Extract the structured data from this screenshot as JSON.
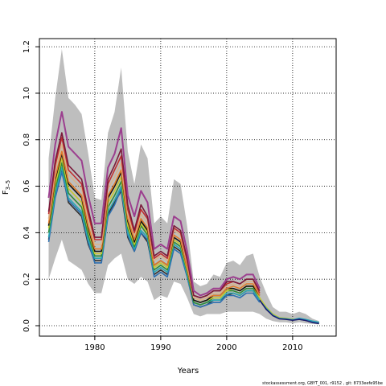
{
  "chart_data": {
    "type": "line",
    "title": "",
    "xlabel": "Years",
    "ylabel": "F",
    "ylabel_subscript": "3–5",
    "xlim": [
      1971.6,
      2016.6
    ],
    "ylim": [
      -0.045,
      1.235
    ],
    "x_ticks": [
      1980,
      1990,
      2000,
      2010
    ],
    "y_ticks": [
      0.0,
      0.2,
      0.4,
      0.6,
      0.8,
      1.0,
      1.2
    ],
    "y_tick_labels": [
      "0.0",
      "0.2",
      "0.4",
      "0.6",
      "0.8",
      "1.0",
      "1.2"
    ],
    "grid": true,
    "band_color": "#bebebe",
    "band": {
      "x": [
        1973,
        1974,
        1975,
        1976,
        1977,
        1978,
        1979,
        1980,
        1981,
        1982,
        1983,
        1984,
        1985,
        1986,
        1987,
        1988,
        1989,
        1990,
        1991,
        1992,
        1993,
        1994,
        1995,
        1996,
        1997,
        1998,
        1999,
        2000,
        2001,
        2002,
        2003,
        2004,
        2005,
        2006,
        2007,
        2008,
        2009,
        2010,
        2011,
        2012,
        2013,
        2014
      ],
      "upper": [
        0.72,
        0.98,
        1.19,
        0.98,
        0.95,
        0.91,
        0.74,
        0.55,
        0.54,
        0.83,
        0.92,
        1.11,
        0.75,
        0.61,
        0.78,
        0.72,
        0.44,
        0.47,
        0.44,
        0.63,
        0.61,
        0.43,
        0.19,
        0.17,
        0.18,
        0.22,
        0.21,
        0.27,
        0.28,
        0.26,
        0.3,
        0.31,
        0.21,
        0.14,
        0.08,
        0.06,
        0.06,
        0.05,
        0.06,
        0.05,
        0.03,
        0.02
      ],
      "lower": [
        0.2,
        0.29,
        0.37,
        0.28,
        0.26,
        0.24,
        0.18,
        0.14,
        0.14,
        0.26,
        0.29,
        0.31,
        0.2,
        0.18,
        0.21,
        0.19,
        0.11,
        0.13,
        0.12,
        0.19,
        0.18,
        0.12,
        0.05,
        0.04,
        0.05,
        0.05,
        0.05,
        0.06,
        0.06,
        0.06,
        0.06,
        0.06,
        0.05,
        0.03,
        0.02,
        0.015,
        0.015,
        0.01,
        0.015,
        0.01,
        0.008,
        0.005
      ]
    },
    "x": [
      1973,
      1974,
      1975,
      1976,
      1977,
      1978,
      1979,
      1980,
      1981,
      1982,
      1983,
      1984,
      1985,
      1986,
      1987,
      1988,
      1989,
      1990,
      1991,
      1992,
      1993,
      1994,
      1995,
      1996,
      1997,
      1998,
      1999,
      2000,
      2001,
      2002,
      2003,
      2004,
      2005
    ],
    "series": [
      {
        "color": "#303030",
        "values": [
          0.37,
          0.56,
          0.67,
          0.53,
          0.5,
          0.47,
          0.35,
          0.28,
          0.28,
          0.48,
          0.53,
          0.58,
          0.38,
          0.32,
          0.4,
          0.36,
          0.22,
          0.24,
          0.22,
          0.34,
          0.32,
          0.22,
          0.09,
          0.08,
          0.09,
          0.11,
          0.11,
          0.13,
          0.14,
          0.13,
          0.15,
          0.15,
          0.11
        ]
      },
      {
        "color": "#2c6fb0",
        "values": [
          0.36,
          0.55,
          0.66,
          0.54,
          0.51,
          0.48,
          0.36,
          0.27,
          0.27,
          0.47,
          0.52,
          0.59,
          0.39,
          0.32,
          0.4,
          0.37,
          0.21,
          0.23,
          0.21,
          0.33,
          0.31,
          0.21,
          0.09,
          0.08,
          0.09,
          0.1,
          0.1,
          0.13,
          0.13,
          0.12,
          0.14,
          0.14,
          0.1
        ]
      },
      {
        "color": "#2aa7b3",
        "values": [
          0.38,
          0.57,
          0.68,
          0.55,
          0.52,
          0.49,
          0.37,
          0.29,
          0.29,
          0.49,
          0.54,
          0.6,
          0.4,
          0.33,
          0.41,
          0.38,
          0.23,
          0.25,
          0.23,
          0.35,
          0.33,
          0.22,
          0.1,
          0.09,
          0.1,
          0.11,
          0.11,
          0.14,
          0.14,
          0.13,
          0.15,
          0.15,
          0.11
        ]
      },
      {
        "color": "#2e8b3a",
        "values": [
          0.4,
          0.59,
          0.7,
          0.57,
          0.54,
          0.51,
          0.39,
          0.3,
          0.3,
          0.51,
          0.56,
          0.62,
          0.42,
          0.34,
          0.43,
          0.39,
          0.24,
          0.26,
          0.24,
          0.36,
          0.34,
          0.23,
          0.1,
          0.09,
          0.1,
          0.12,
          0.12,
          0.15,
          0.15,
          0.14,
          0.16,
          0.16,
          0.12
        ]
      },
      {
        "color": "#c8c830",
        "values": [
          0.42,
          0.61,
          0.72,
          0.59,
          0.56,
          0.53,
          0.41,
          0.31,
          0.31,
          0.53,
          0.58,
          0.64,
          0.43,
          0.35,
          0.44,
          0.4,
          0.25,
          0.27,
          0.25,
          0.37,
          0.35,
          0.24,
          0.11,
          0.1,
          0.11,
          0.12,
          0.12,
          0.15,
          0.16,
          0.15,
          0.17,
          0.17,
          0.12
        ]
      },
      {
        "color": "#111111",
        "values": [
          0.43,
          0.63,
          0.74,
          0.61,
          0.58,
          0.55,
          0.42,
          0.32,
          0.32,
          0.55,
          0.6,
          0.66,
          0.45,
          0.36,
          0.45,
          0.41,
          0.26,
          0.28,
          0.26,
          0.38,
          0.36,
          0.25,
          0.11,
          0.1,
          0.11,
          0.13,
          0.13,
          0.16,
          0.16,
          0.15,
          0.17,
          0.17,
          0.13
        ]
      },
      {
        "color": "#e07b2a",
        "values": [
          0.44,
          0.64,
          0.75,
          0.62,
          0.59,
          0.56,
          0.43,
          0.33,
          0.33,
          0.56,
          0.61,
          0.67,
          0.46,
          0.37,
          0.46,
          0.42,
          0.26,
          0.28,
          0.26,
          0.39,
          0.37,
          0.25,
          0.12,
          0.11,
          0.12,
          0.13,
          0.13,
          0.16,
          0.17,
          0.16,
          0.18,
          0.18,
          0.13
        ]
      },
      {
        "color": "#d9b48a",
        "values": [
          0.46,
          0.67,
          0.78,
          0.65,
          0.62,
          0.59,
          0.46,
          0.35,
          0.35,
          0.59,
          0.64,
          0.7,
          0.48,
          0.39,
          0.48,
          0.44,
          0.28,
          0.3,
          0.28,
          0.41,
          0.39,
          0.27,
          0.12,
          0.11,
          0.12,
          0.14,
          0.14,
          0.17,
          0.18,
          0.17,
          0.19,
          0.19,
          0.14
        ]
      },
      {
        "color": "#c03030",
        "values": [
          0.48,
          0.69,
          0.81,
          0.67,
          0.64,
          0.61,
          0.48,
          0.37,
          0.37,
          0.61,
          0.67,
          0.73,
          0.5,
          0.4,
          0.5,
          0.46,
          0.29,
          0.31,
          0.29,
          0.42,
          0.4,
          0.28,
          0.13,
          0.12,
          0.13,
          0.15,
          0.15,
          0.18,
          0.19,
          0.18,
          0.2,
          0.2,
          0.14
        ]
      },
      {
        "color": "#7a1a3a",
        "values": [
          0.49,
          0.71,
          0.83,
          0.69,
          0.66,
          0.63,
          0.5,
          0.38,
          0.38,
          0.63,
          0.69,
          0.76,
          0.52,
          0.41,
          0.52,
          0.47,
          0.3,
          0.32,
          0.3,
          0.43,
          0.41,
          0.29,
          0.13,
          0.12,
          0.13,
          0.15,
          0.15,
          0.19,
          0.19,
          0.18,
          0.2,
          0.2,
          0.15
        ]
      },
      {
        "color": "#9c3f8f",
        "values": [
          0.55,
          0.78,
          0.92,
          0.77,
          0.74,
          0.71,
          0.56,
          0.44,
          0.44,
          0.68,
          0.74,
          0.85,
          0.56,
          0.47,
          0.58,
          0.53,
          0.33,
          0.35,
          0.33,
          0.47,
          0.45,
          0.32,
          0.15,
          0.13,
          0.14,
          0.16,
          0.16,
          0.2,
          0.21,
          0.2,
          0.22,
          0.22,
          0.16
        ]
      }
    ],
    "tail": {
      "x": [
        2005,
        2006,
        2007,
        2008,
        2009,
        2010,
        2011,
        2012,
        2013,
        2014
      ],
      "series": [
        {
          "color": "#303030",
          "values": [
            0.11,
            0.07,
            0.045,
            0.03,
            0.03,
            0.025,
            0.028,
            0.022,
            0.015,
            0.012
          ]
        },
        {
          "color": "#c8c830",
          "values": [
            0.12,
            0.08,
            0.05,
            0.035,
            0.032,
            0.028,
            0.03,
            0.025,
            0.018,
            0.014
          ]
        },
        {
          "color": "#2aa7b3",
          "values": [
            0.11,
            0.075,
            0.046,
            0.032,
            0.03,
            0.026,
            0.032,
            0.027,
            0.02,
            0.015
          ]
        },
        {
          "color": "#2c6fb0",
          "values": [
            0.11,
            0.072,
            0.044,
            0.03,
            0.028,
            0.024,
            0.029,
            0.024,
            0.016,
            0.011
          ]
        },
        {
          "color": "#1a1a6a",
          "values": [
            0.11,
            0.07,
            0.043,
            0.029,
            0.027,
            0.023,
            0.027,
            0.022,
            0.013,
            0.009
          ]
        }
      ]
    }
  },
  "footer": "stockassessment.org, GBYT_001, r9152 , git: 8733eefe95be"
}
